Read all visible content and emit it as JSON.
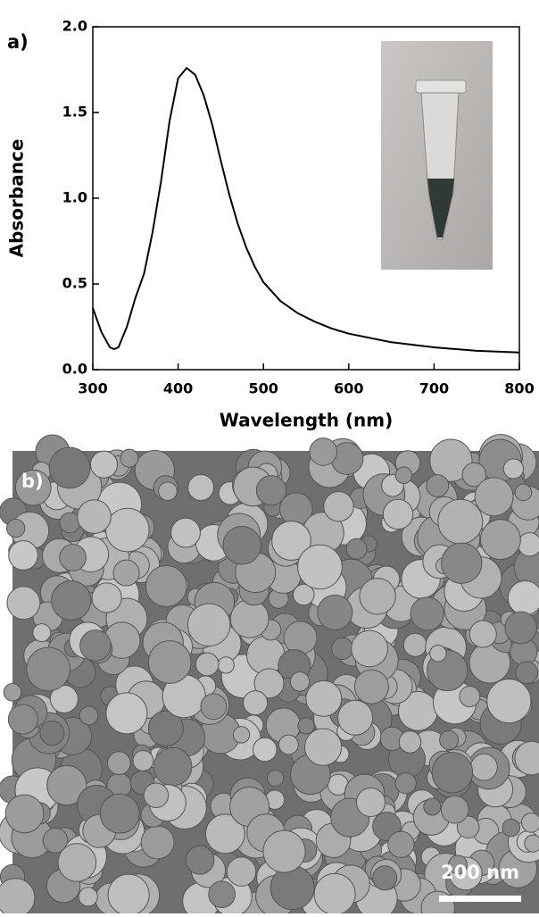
{
  "chart_data": {
    "type": "line",
    "panel_label": "a)",
    "x_label": "Wavelength (nm)",
    "y_label": "Absorbance",
    "x": [
      300,
      310,
      320,
      325,
      330,
      340,
      350,
      360,
      370,
      380,
      390,
      400,
      410,
      420,
      430,
      440,
      450,
      460,
      470,
      480,
      490,
      500,
      520,
      540,
      560,
      580,
      600,
      650,
      700,
      750,
      800
    ],
    "values": [
      0.36,
      0.22,
      0.13,
      0.12,
      0.13,
      0.25,
      0.42,
      0.56,
      0.8,
      1.1,
      1.45,
      1.7,
      1.76,
      1.72,
      1.6,
      1.43,
      1.22,
      1.02,
      0.85,
      0.71,
      0.6,
      0.51,
      0.4,
      0.33,
      0.28,
      0.24,
      0.21,
      0.16,
      0.13,
      0.11,
      0.1
    ],
    "color": "#000000",
    "xlim": [
      300,
      800
    ],
    "xticks": [
      300,
      400,
      500,
      600,
      700,
      800
    ],
    "ylim": [
      0,
      2
    ],
    "yticks": [
      {
        "value": 0,
        "label": "0.0"
      },
      0.5,
      {
        "value": 1,
        "label": "1.0"
      },
      1.5,
      {
        "value": 2,
        "label": "2.0"
      }
    ]
  },
  "image": {
    "panel_label": "b)",
    "scale_bar": "200 nm"
  }
}
